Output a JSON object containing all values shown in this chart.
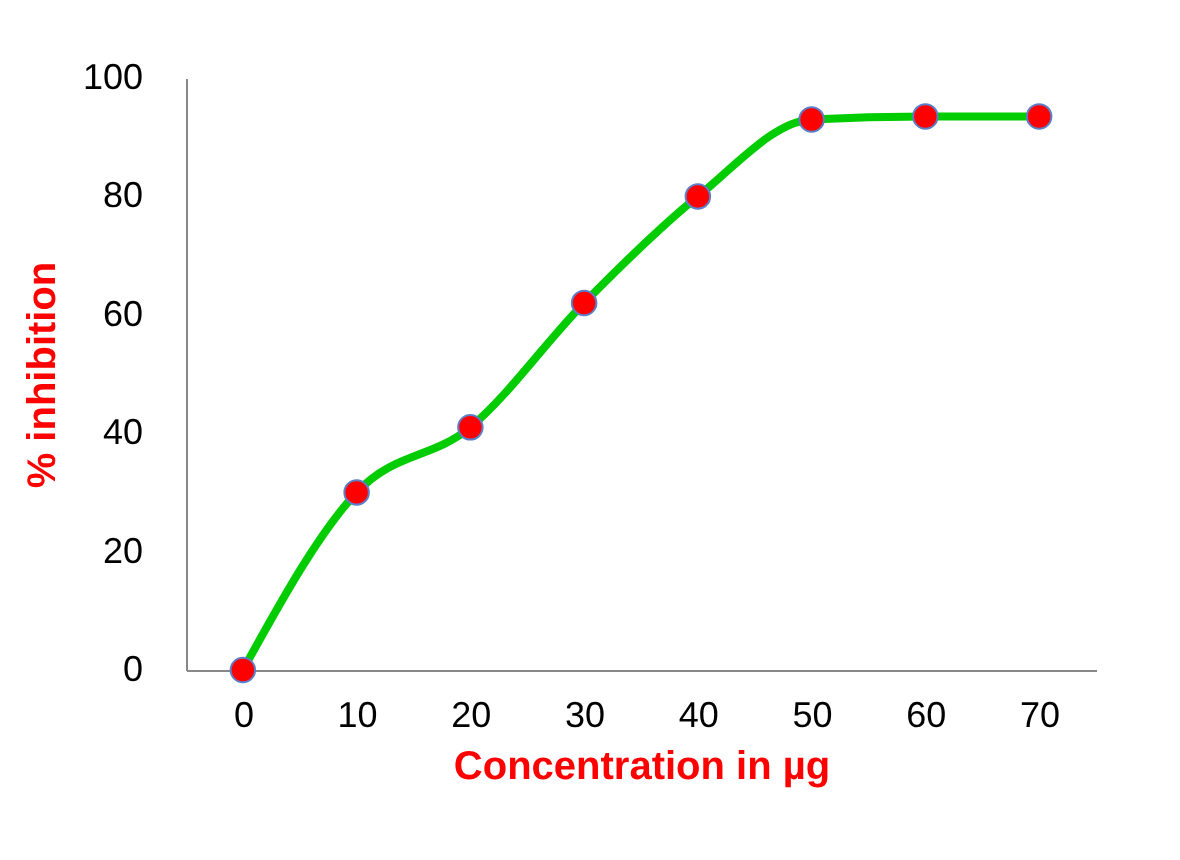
{
  "chart_data": {
    "type": "line",
    "xlabel": "Concentration in µg",
    "ylabel": "% inhibition",
    "categories": [
      "0",
      "10",
      "20",
      "30",
      "40",
      "50",
      "60",
      "70"
    ],
    "series": [
      {
        "color": "#00cc00",
        "colors": [
          "#ff0000",
          "#ff0000",
          "#ff0000",
          "#ff0000",
          "#ff0000",
          "#ff0000",
          "#ff0000",
          "#ff0000"
        ],
        "values": [
          0,
          30,
          41,
          62,
          80,
          93,
          93.5,
          93.5
        ]
      }
    ],
    "marker": "circle",
    "line_style": "solid",
    "ylim": [
      0,
      100
    ],
    "yticks": [
      0,
      20,
      40,
      60,
      80,
      100
    ],
    "grid": false
  }
}
